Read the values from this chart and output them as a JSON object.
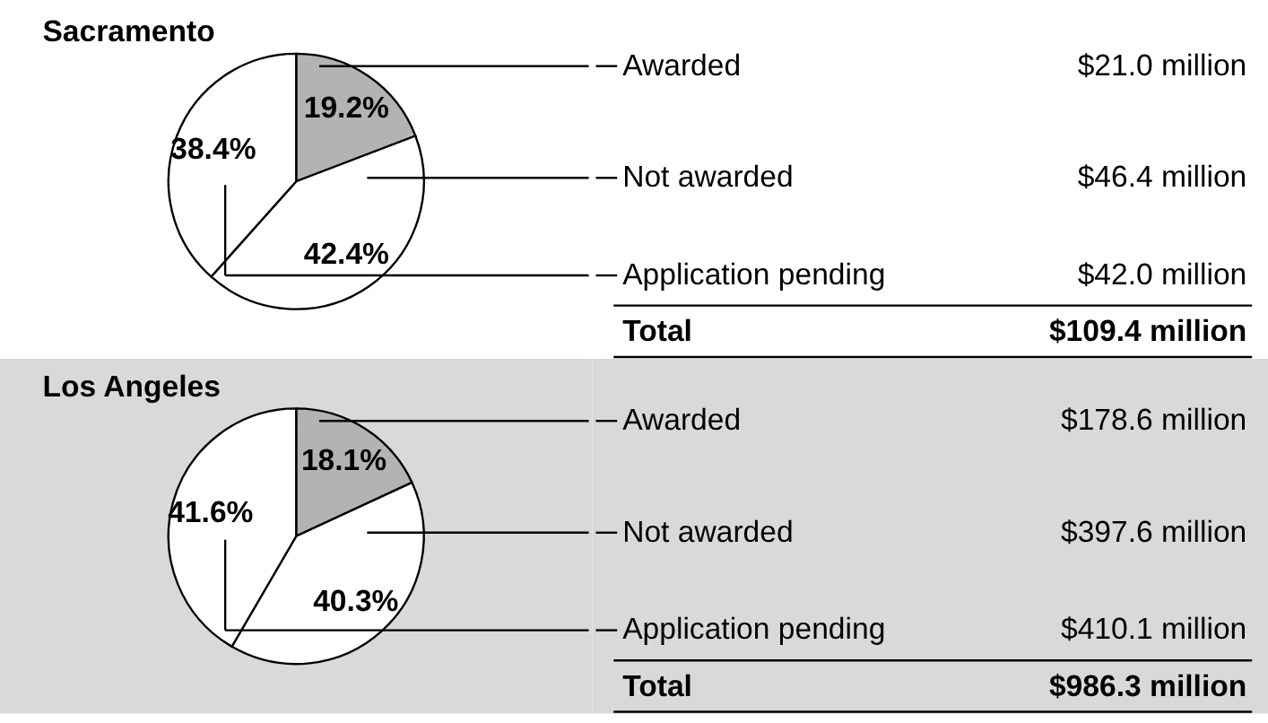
{
  "chart_data": [
    {
      "type": "pie",
      "title": "Sacramento",
      "categories": [
        "Awarded",
        "Not awarded",
        "Application pending"
      ],
      "values": [
        19.2,
        42.4,
        38.4
      ],
      "value_labels": [
        "19.2%",
        "42.4%",
        "38.4%"
      ],
      "colors": [
        "#b3b3b3",
        "#ffffff",
        "#ffffff"
      ],
      "annotations": [
        "$21.0 million",
        "$46.4 million",
        "$42.0 million",
        "Total",
        "$109.4 million"
      ],
      "legend": "right"
    },
    {
      "type": "pie",
      "title": "Los Angeles",
      "categories": [
        "Awarded",
        "Not awarded",
        "Application pending"
      ],
      "values": [
        18.1,
        40.3,
        41.6
      ],
      "value_labels": [
        "18.1%",
        "40.3%",
        "41.6%"
      ],
      "colors": [
        "#b3b3b3",
        "#ffffff",
        "#ffffff"
      ],
      "annotations": [
        "$178.6 million",
        "$397.6 million",
        "$410.1 million",
        "Total",
        "$986.3 million"
      ],
      "legend": "right"
    }
  ]
}
